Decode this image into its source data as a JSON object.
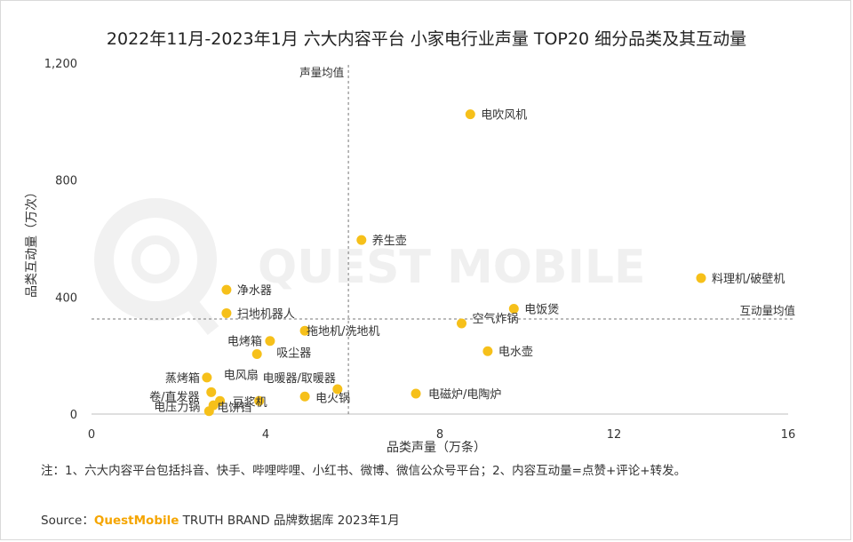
{
  "chart_data": {
    "type": "scatter",
    "title": "2022年11月-2023年1月 六大内容平台 小家电行业声量 TOP20 细分品类及其互动量",
    "xlabel": "品类声量（万条）",
    "ylabel": "品类互动量（万次）",
    "xlim": [
      0,
      16
    ],
    "ylim": [
      0,
      1200
    ],
    "x_ticks": [
      "0",
      "4",
      "8",
      "12",
      "16"
    ],
    "y_ticks": [
      "0",
      "400",
      "800",
      "1,200"
    ],
    "grid": false,
    "point_color": "#F6C01A",
    "reference_lines": {
      "x": {
        "value": 5.9,
        "label": "声量均值"
      },
      "y": {
        "value": 325,
        "label": "互动量均值"
      }
    },
    "points": [
      {
        "label": "电吹风机",
        "x": 8.7,
        "y": 1025
      },
      {
        "label": "养生壶",
        "x": 6.2,
        "y": 595
      },
      {
        "label": "料理机/破壁机",
        "x": 14.0,
        "y": 465
      },
      {
        "label": "净水器",
        "x": 3.1,
        "y": 425
      },
      {
        "label": "电饭煲",
        "x": 9.7,
        "y": 360
      },
      {
        "label": "扫地机器人",
        "x": 3.1,
        "y": 345
      },
      {
        "label": "空气炸锅",
        "x": 8.5,
        "y": 310
      },
      {
        "label": "拖地机/洗地机",
        "x": 4.9,
        "y": 285
      },
      {
        "label": "电烤箱",
        "x": 4.1,
        "y": 250
      },
      {
        "label": "电水壶",
        "x": 9.1,
        "y": 215
      },
      {
        "label": "吸尘器",
        "x": 3.8,
        "y": 205
      },
      {
        "label": "蒸烤箱",
        "x": 2.65,
        "y": 125
      },
      {
        "label": "电风扇",
        "x": 2.75,
        "y": 75
      },
      {
        "label": "电暖器/取暖器",
        "x": 5.65,
        "y": 85
      },
      {
        "label": "电火锅",
        "x": 4.9,
        "y": 60
      },
      {
        "label": "电磁炉/电陶炉",
        "x": 7.45,
        "y": 70
      },
      {
        "label": "卷/直发器",
        "x": 2.95,
        "y": 45
      },
      {
        "label": "豆浆机",
        "x": 3.85,
        "y": 45
      },
      {
        "label": "电饼铛",
        "x": 2.8,
        "y": 30
      },
      {
        "label": "电压力锅",
        "x": 2.7,
        "y": 10
      }
    ]
  },
  "watermark": "QUEST MOBILE",
  "note": "注：1、六大内容平台包括抖音、快手、哔哩哔哩、小红书、微博、微信公众号平台；2、内容互动量=点赞+评论+转发。",
  "source": {
    "prefix": "Source：",
    "brand": "QuestMobile",
    "rest": " TRUTH BRAND 品牌数据库 2023年1月",
    "brand_color": "#F5A500"
  }
}
